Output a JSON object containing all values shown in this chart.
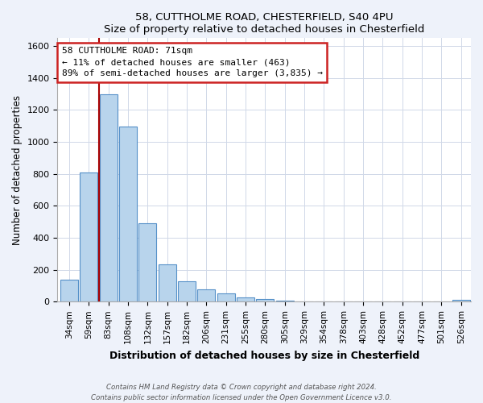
{
  "title1": "58, CUTTHOLME ROAD, CHESTERFIELD, S40 4PU",
  "title2": "Size of property relative to detached houses in Chesterfield",
  "xlabel": "Distribution of detached houses by size in Chesterfield",
  "ylabel": "Number of detached properties",
  "bar_labels": [
    "34sqm",
    "59sqm",
    "83sqm",
    "108sqm",
    "132sqm",
    "157sqm",
    "182sqm",
    "206sqm",
    "231sqm",
    "255sqm",
    "280sqm",
    "305sqm",
    "329sqm",
    "354sqm",
    "378sqm",
    "403sqm",
    "428sqm",
    "452sqm",
    "477sqm",
    "501sqm",
    "526sqm"
  ],
  "bar_values": [
    140,
    810,
    1295,
    1095,
    490,
    235,
    130,
    75,
    50,
    25,
    15,
    5,
    2,
    2,
    2,
    2,
    2,
    0,
    0,
    0,
    10
  ],
  "bar_color": "#b8d4ec",
  "bar_edge_color": "#5590c8",
  "vline_color": "#aa0000",
  "annotation_line1": "58 CUTTHOLME ROAD: 71sqm",
  "annotation_line2": "← 11% of detached houses are smaller (463)",
  "annotation_line3": "89% of semi-detached houses are larger (3,835) →",
  "annotation_box_color": "#ffffff",
  "annotation_box_edge": "#cc2222",
  "ylim": [
    0,
    1650
  ],
  "yticks": [
    0,
    200,
    400,
    600,
    800,
    1000,
    1200,
    1400,
    1600
  ],
  "footer1": "Contains HM Land Registry data © Crown copyright and database right 2024.",
  "footer2": "Contains public sector information licensed under the Open Government Licence v3.0.",
  "bg_color": "#eef2fa",
  "plot_bg_color": "#ffffff",
  "grid_color": "#d0d8e8"
}
